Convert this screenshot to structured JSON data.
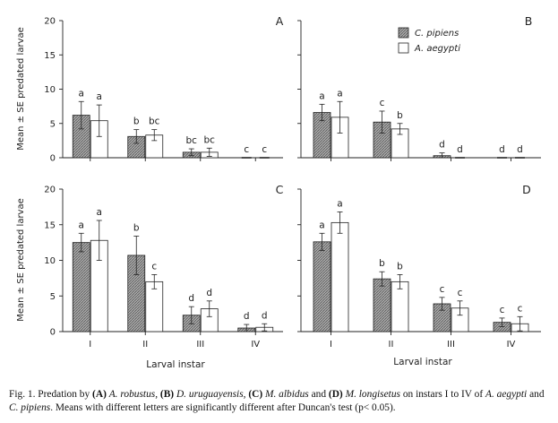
{
  "chart_data": {
    "type": "bar",
    "y_axis_label": "Mean ± SE predated larvae",
    "x_axis_label": "Larval instar",
    "categories": [
      "I",
      "II",
      "III",
      "IV"
    ],
    "legend": [
      {
        "name": "C. pipiens",
        "pattern": "hatched-gray"
      },
      {
        "name": "A. aegypti",
        "pattern": "white"
      }
    ],
    "panels": [
      {
        "label": "A",
        "ylim": [
          0,
          20
        ],
        "yticks": [
          0,
          5,
          10,
          15,
          20
        ],
        "series": [
          {
            "name": "C. pipiens",
            "values": [
              6.2,
              3.1,
              0.8,
              0
            ],
            "se": [
              2.0,
              1.0,
              0.5,
              0
            ],
            "letters": [
              "a",
              "b",
              "bc",
              "c"
            ]
          },
          {
            "name": "A. aegypti",
            "values": [
              5.4,
              3.3,
              0.8,
              0
            ],
            "se": [
              2.3,
              0.8,
              0.6,
              0
            ],
            "letters": [
              "a",
              "bc",
              "bc",
              "c"
            ]
          }
        ]
      },
      {
        "label": "B",
        "ylim": [
          0,
          20
        ],
        "yticks": [
          0,
          5,
          10,
          15,
          20
        ],
        "series": [
          {
            "name": "C. pipiens",
            "values": [
              6.6,
              5.2,
              0.3,
              0
            ],
            "se": [
              1.2,
              1.6,
              0.4,
              0
            ],
            "letters": [
              "a",
              "c",
              "d",
              "d"
            ]
          },
          {
            "name": "A. aegypti",
            "values": [
              5.9,
              4.2,
              0,
              0
            ],
            "se": [
              2.3,
              0.8,
              0,
              0
            ],
            "letters": [
              "a",
              "b",
              "d",
              "d"
            ]
          }
        ]
      },
      {
        "label": "C",
        "ylim": [
          0,
          20
        ],
        "yticks": [
          0,
          5,
          10,
          15,
          20
        ],
        "series": [
          {
            "name": "C. pipiens",
            "values": [
              12.5,
              10.7,
              2.3,
              0.5
            ],
            "se": [
              1.3,
              2.7,
              1.2,
              0.5
            ],
            "letters": [
              "a",
              "b",
              "d",
              "d"
            ]
          },
          {
            "name": "A. aegypti",
            "values": [
              12.8,
              7.0,
              3.2,
              0.6
            ],
            "se": [
              2.8,
              1.0,
              1.1,
              0.5
            ],
            "letters": [
              "a",
              "c",
              "d",
              "d"
            ]
          }
        ]
      },
      {
        "label": "D",
        "ylim": [
          0,
          20
        ],
        "yticks": [
          0,
          5,
          10,
          15,
          20
        ],
        "series": [
          {
            "name": "C. pipiens",
            "values": [
              12.6,
              7.4,
              3.9,
              1.3
            ],
            "se": [
              1.2,
              1.0,
              0.9,
              0.6
            ],
            "letters": [
              "a",
              "b",
              "c",
              "c"
            ]
          },
          {
            "name": "A. aegypti",
            "values": [
              15.3,
              7.0,
              3.3,
              1.1
            ],
            "se": [
              1.5,
              1.0,
              1.0,
              1.0
            ],
            "letters": [
              "a",
              "b",
              "c",
              "c"
            ]
          }
        ]
      }
    ]
  },
  "caption": {
    "fig_label": "Fig. 1. Predation by",
    "a_tag": "(A)",
    "a_species": "A. robustus",
    "b_tag": "(B)",
    "b_species": "D. uruguayensis",
    "c_tag": "(C)",
    "c_species": "M. albidus",
    "and_word": "and",
    "d_tag": "(D)",
    "d_species": "M. longisetus",
    "instars_text": "on instars I to IV of",
    "prey1": "A. aegypti",
    "and2": "and",
    "prey2": "C. pipiens",
    "end_text": ". Means with different letters are significantly different after Duncan's test (p< 0.05)."
  }
}
